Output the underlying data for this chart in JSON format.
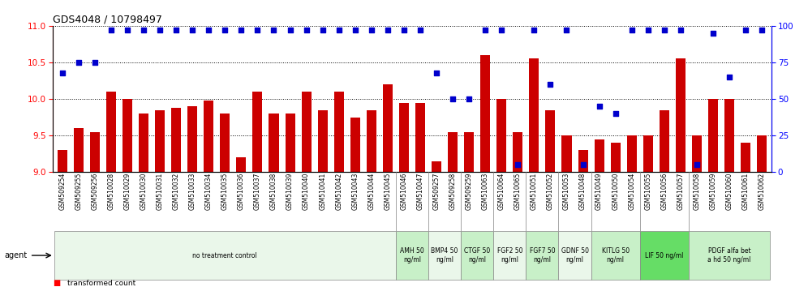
{
  "title": "GDS4048 / 10798497",
  "categories": [
    "GSM509254",
    "GSM509255",
    "GSM509256",
    "GSM510028",
    "GSM510029",
    "GSM510030",
    "GSM510031",
    "GSM510032",
    "GSM510033",
    "GSM510034",
    "GSM510035",
    "GSM510036",
    "GSM510037",
    "GSM510038",
    "GSM510039",
    "GSM510040",
    "GSM510041",
    "GSM510042",
    "GSM510043",
    "GSM510044",
    "GSM510045",
    "GSM510046",
    "GSM510047",
    "GSM509257",
    "GSM509258",
    "GSM509259",
    "GSM510063",
    "GSM510064",
    "GSM510065",
    "GSM510051",
    "GSM510052",
    "GSM510053",
    "GSM510048",
    "GSM510049",
    "GSM510050",
    "GSM510054",
    "GSM510055",
    "GSM510056",
    "GSM510057",
    "GSM510058",
    "GSM510059",
    "GSM510060",
    "GSM510061",
    "GSM510062"
  ],
  "bar_values": [
    9.3,
    9.6,
    9.55,
    10.1,
    10.0,
    9.8,
    9.85,
    9.88,
    9.9,
    9.98,
    9.8,
    9.2,
    10.1,
    9.8,
    9.8,
    10.1,
    9.85,
    10.1,
    9.75,
    9.85,
    10.2,
    9.95,
    9.95,
    9.15,
    9.55,
    9.55,
    10.6,
    10.0,
    9.55,
    10.55,
    9.85,
    9.5,
    9.3,
    9.45,
    9.4,
    9.5,
    9.5,
    9.85,
    10.55,
    9.5,
    10.0,
    10.0,
    9.4,
    9.5
  ],
  "dot_values": [
    68,
    75,
    75,
    97,
    97,
    97,
    97,
    97,
    97,
    97,
    97,
    97,
    97,
    97,
    97,
    97,
    97,
    97,
    97,
    97,
    97,
    97,
    97,
    68,
    50,
    50,
    97,
    97,
    5,
    97,
    60,
    97,
    5,
    45,
    40,
    97,
    97,
    97,
    97,
    5,
    95,
    65,
    97,
    97
  ],
  "bar_color": "#cc0000",
  "dot_color": "#0000cc",
  "ylim_left": [
    9.0,
    11.0
  ],
  "ylim_right": [
    0,
    100
  ],
  "yticks_left": [
    9.0,
    9.5,
    10.0,
    10.5,
    11.0
  ],
  "yticks_right": [
    0,
    25,
    50,
    75,
    100
  ],
  "agent_groups": [
    {
      "label": "no treatment control",
      "start": 0,
      "end": 21,
      "color": "#eaf7ea"
    },
    {
      "label": "AMH 50\nng/ml",
      "start": 21,
      "end": 23,
      "color": "#c8f0c8"
    },
    {
      "label": "BMP4 50\nng/ml",
      "start": 23,
      "end": 25,
      "color": "#eaf7ea"
    },
    {
      "label": "CTGF 50\nng/ml",
      "start": 25,
      "end": 27,
      "color": "#c8f0c8"
    },
    {
      "label": "FGF2 50\nng/ml",
      "start": 27,
      "end": 29,
      "color": "#eaf7ea"
    },
    {
      "label": "FGF7 50\nng/ml",
      "start": 29,
      "end": 31,
      "color": "#c8f0c8"
    },
    {
      "label": "GDNF 50\nng/ml",
      "start": 31,
      "end": 33,
      "color": "#eaf7ea"
    },
    {
      "label": "KITLG 50\nng/ml",
      "start": 33,
      "end": 36,
      "color": "#c8f0c8"
    },
    {
      "label": "LIF 50 ng/ml",
      "start": 36,
      "end": 39,
      "color": "#66dd66"
    },
    {
      "label": "PDGF alfa bet\na hd 50 ng/ml",
      "start": 39,
      "end": 44,
      "color": "#c8f0c8"
    }
  ]
}
